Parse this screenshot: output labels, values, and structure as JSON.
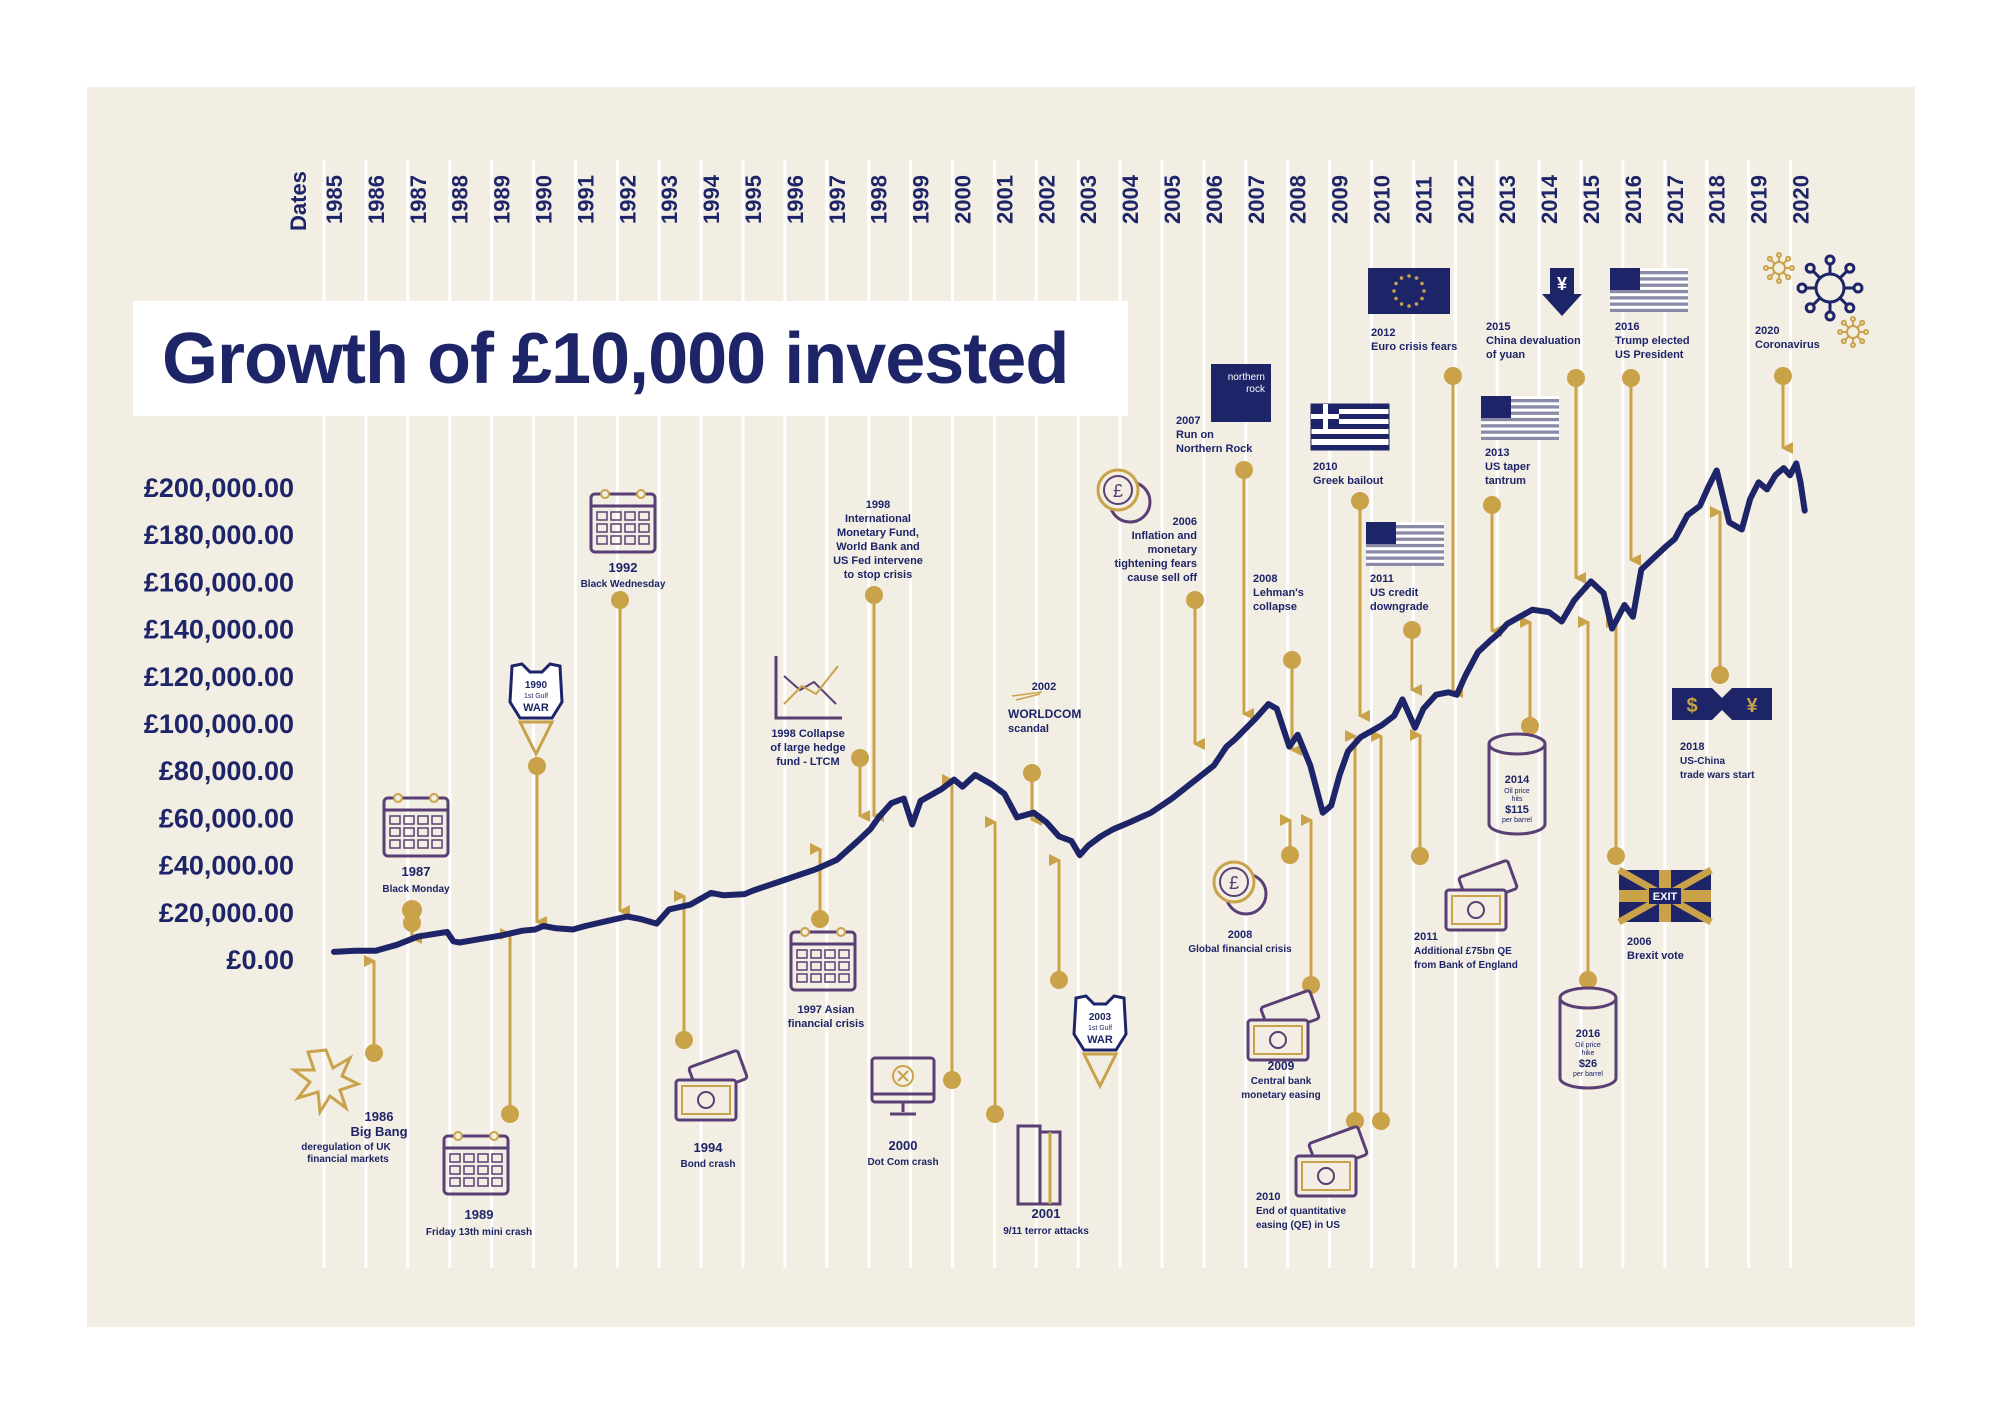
{
  "title": "Growth of £10,000 invested",
  "colors": {
    "background": "#f3eee3",
    "navy": "#1d2468",
    "gold": "#c9a24a",
    "white": "#ffffff"
  },
  "chart_data": {
    "type": "line",
    "title": "Growth of £10,000 invested",
    "xlabel": "Dates",
    "ylabel": "",
    "x_ticks": [
      1985,
      1986,
      1987,
      1988,
      1989,
      1990,
      1991,
      1992,
      1993,
      1994,
      1995,
      1996,
      1997,
      1998,
      1999,
      2000,
      2001,
      2002,
      2003,
      2004,
      2005,
      2006,
      2007,
      2008,
      2009,
      2010,
      2011,
      2012,
      2013,
      2014,
      2015,
      2016,
      2017,
      2018,
      2019,
      2020
    ],
    "y_ticks": [
      "£0.00",
      "£20,000.00",
      "£40,000.00",
      "£60,000.00",
      "£80,000.00",
      "£100,000.00",
      "£120,000.00",
      "£140,000.00",
      "£160,000.00",
      "£180,000.00",
      "£200,000.00"
    ],
    "ylim": [
      0,
      200000
    ],
    "xlim": [
      1985,
      2020
    ],
    "grid": "vertical lines at each year",
    "series": [
      {
        "x": [
          1985.0,
          1985.5,
          1986.0,
          1986.5,
          1987.0,
          1987.7,
          1987.85,
          1988.0,
          1988.5,
          1989.0,
          1989.5,
          1989.8,
          1990.0,
          1990.3,
          1990.7,
          1991.0,
          1991.5,
          1992.0,
          1992.3,
          1992.7,
          1993.0,
          1993.5,
          1994.0,
          1994.3,
          1994.8,
          1995.0,
          1995.5,
          1996.0,
          1996.5,
          1997.0,
          1997.5,
          1997.8,
          1998.0,
          1998.3,
          1998.6,
          1998.8,
          1999.0,
          1999.5,
          1999.8,
          2000.0,
          2000.3,
          2000.7,
          2001.0,
          2001.3,
          2001.7,
          2002.0,
          2002.3,
          2002.6,
          2002.8,
          2003.0,
          2003.3,
          2003.6,
          2004.0,
          2004.5,
          2005.0,
          2005.5,
          2006.0,
          2006.3,
          2006.5,
          2007.0,
          2007.3,
          2007.5,
          2007.8,
          2008.0,
          2008.3,
          2008.6,
          2008.8,
          2009.0,
          2009.2,
          2009.5,
          2009.8,
          2010.0,
          2010.3,
          2010.5,
          2010.8,
          2011.0,
          2011.3,
          2011.6,
          2011.8,
          2012.0,
          2012.3,
          2012.6,
          2012.8,
          2013.0,
          2013.3,
          2013.6,
          2014.0,
          2014.3,
          2014.6,
          2014.8,
          2015.0,
          2015.3,
          2015.5,
          2015.8,
          2016.0,
          2016.2,
          2016.5,
          2016.8,
          2017.0,
          2017.3,
          2017.6,
          2017.8,
          2018.0,
          2018.3,
          2018.6,
          2018.8,
          2019.0,
          2019.2,
          2019.4,
          2019.6,
          2019.75,
          2019.9,
          2020.0,
          2020.1
        ],
        "y": [
          3000,
          3500,
          3500,
          6000,
          9500,
          11500,
          7500,
          7000,
          8500,
          10000,
          12000,
          12500,
          14000,
          13000,
          12500,
          14000,
          16000,
          18000,
          17000,
          15000,
          21000,
          23000,
          28000,
          27000,
          27500,
          29000,
          32000,
          35000,
          38000,
          42000,
          50000,
          55000,
          60000,
          66000,
          68000,
          57000,
          67000,
          72000,
          76000,
          73000,
          78000,
          74000,
          70000,
          60000,
          62000,
          58000,
          52000,
          50000,
          44000,
          48000,
          52000,
          55000,
          58000,
          62000,
          68000,
          75000,
          82000,
          90000,
          93000,
          102000,
          108000,
          106000,
          90000,
          95000,
          82000,
          62000,
          65000,
          78000,
          88000,
          94000,
          97000,
          99000,
          103000,
          110000,
          98000,
          106000,
          112000,
          113000,
          112000,
          120000,
          130000,
          135000,
          138000,
          142000,
          145000,
          148000,
          147000,
          143000,
          152000,
          156000,
          160000,
          155000,
          140000,
          150000,
          145000,
          165000,
          170000,
          175000,
          178000,
          188000,
          192000,
          200000,
          207000,
          185000,
          182000,
          195000,
          202000,
          199000,
          205000,
          208000,
          205000,
          210000,
          202000,
          190000
        ]
      }
    ],
    "annotations": [
      {
        "year": "1986",
        "text": "Big Bang",
        "sub": "deregulation of UK financial markets",
        "icon": "explosion-icon"
      },
      {
        "year": "1987",
        "text": "Black Monday",
        "icon": "calendar-icon"
      },
      {
        "year": "1989",
        "text": "Friday 13th mini crash",
        "icon": "calendar-icon"
      },
      {
        "year": "1990",
        "text": "1st Gulf WAR",
        "icon": "rocket-icon"
      },
      {
        "year": "1992",
        "text": "Black Wednesday",
        "icon": "calendar-icon"
      },
      {
        "year": "1994",
        "text": "Bond crash",
        "icon": "banknotes-icon"
      },
      {
        "year": "1997",
        "text": "Asian financial crisis",
        "icon": "calendar-icon"
      },
      {
        "year": "1998",
        "text": "Collapse of large hedge fund - LTCM",
        "icon": "chart-crash-icon"
      },
      {
        "year": "1998",
        "text": "International Monetary Fund, World Bank and US Fed intervene to stop crisis"
      },
      {
        "year": "2000",
        "text": "Dot Com crash",
        "icon": "computer-icon"
      },
      {
        "year": "2001",
        "text": "9/11 terror attacks",
        "icon": "towers-icon"
      },
      {
        "year": "2002",
        "text": "WORLDCOM scandal",
        "icon": "worldcom-logo-icon"
      },
      {
        "year": "2003",
        "text": "1st Gulf WAR",
        "icon": "rocket-icon"
      },
      {
        "year": "2006",
        "text": "Inflation and monetary tightening fears cause sell off",
        "icon": "coins-icon"
      },
      {
        "year": "2007",
        "text": "Run on Northern Rock",
        "icon": "northern-rock-logo-icon"
      },
      {
        "year": "2008",
        "text": "Lehman's collapse"
      },
      {
        "year": "2008",
        "text": "Global financial crisis",
        "icon": "coins-icon"
      },
      {
        "year": "2009",
        "text": "Central bank monetary easing",
        "icon": "banknotes-icon"
      },
      {
        "year": "2010",
        "text": "Greek bailout",
        "icon": "greek-flag-icon"
      },
      {
        "year": "2010",
        "text": "End of quantitative easing (QE) in US",
        "icon": "banknotes-icon"
      },
      {
        "year": "2011",
        "text": "US credit downgrade",
        "icon": "us-flag-icon"
      },
      {
        "year": "2011",
        "text": "Additional £75bn QE from Bank of England",
        "icon": "banknotes-icon"
      },
      {
        "year": "2012",
        "text": "Euro crisis fears",
        "icon": "eu-flag-icon"
      },
      {
        "year": "2013",
        "text": "US taper tantrum",
        "icon": "us-flag-icon"
      },
      {
        "year": "2014",
        "text": "Oil price hits $115 per barrel",
        "icon": "oil-barrel-icon"
      },
      {
        "year": "2015",
        "text": "China devaluation of yuan",
        "icon": "yuan-down-icon"
      },
      {
        "year": "2016",
        "text": "Oil price hike $26 per barrel",
        "icon": "oil-barrel-icon"
      },
      {
        "year": "2016",
        "text": "Trump elected US President",
        "icon": "us-flag-icon"
      },
      {
        "year": "2006",
        "text": "Brexit vote",
        "icon": "union-jack-exit-icon"
      },
      {
        "year": "2018",
        "text": "US-China trade wars start",
        "icon": "dollar-yuan-icon"
      },
      {
        "year": "2020",
        "text": "Coronavirus",
        "icon": "virus-icon"
      }
    ]
  },
  "labels": {
    "dates": "Dates",
    "a1986_year": "1986",
    "a1986_t1": "Big Bang",
    "a1986_t2": "deregulation of UK",
    "a1986_t3": "financial markets",
    "a1987_year": "1987",
    "a1987_t1": "Black Monday",
    "a1989_year": "1989",
    "a1989_t1": "Friday 13th mini crash",
    "gulf_1990_year": "1990",
    "gulf_1990_t1": "1st Gulf",
    "gulf_1990_t2": "WAR",
    "a1992_year": "1992",
    "a1992_t1": "Black Wednesday",
    "a1994_year": "1994",
    "a1994_t1": "Bond crash",
    "a1997_t1": "1997 Asian",
    "a1997_t2": "financial crisis",
    "ltcm_t1": "1998 Collapse",
    "ltcm_t2": "of large hedge",
    "ltcm_t3": "fund - LTCM",
    "imf_year": "1998",
    "imf_t1": "International",
    "imf_t2": "Monetary Fund,",
    "imf_t3": "World Bank and",
    "imf_t4": "US Fed intervene",
    "imf_t5": "to stop crisis",
    "a2000_year": "2000",
    "a2000_t1": "Dot Com crash",
    "a2001_year": "2001",
    "a2001_t1": "9/11 terror attacks",
    "a2002_year": "2002",
    "a2002_t1": "WORLDCOM",
    "a2002_t2": "scandal",
    "gulf_2003_year": "2003",
    "gulf_2003_t1": "1st Gulf",
    "gulf_2003_t2": "WAR",
    "a2006_year": "2006",
    "a2006_t1": "Inflation and",
    "a2006_t2": "monetary",
    "a2006_t3": "tightening fears",
    "a2006_t4": "cause sell off",
    "a2007_year": "2007",
    "a2007_t1": "Run on",
    "a2007_t2": "Northern Rock",
    "nr_l1": "northern",
    "nr_l2": "rock",
    "lehman_year": "2008",
    "lehman_t1": "Lehman's",
    "lehman_t2": "collapse",
    "gfc_year": "2008",
    "gfc_t1": "Global financial crisis",
    "a2009_year": "2009",
    "a2009_t1": "Central bank",
    "a2009_t2": "monetary easing",
    "greek_year": "2010",
    "greek_t1": "Greek bailout",
    "qe_end_year": "2010",
    "qe_end_t1": "End of quantitative",
    "qe_end_t2": "easing (QE) in US",
    "downgrade_year": "2011",
    "downgrade_t1": "US credit",
    "downgrade_t2": "downgrade",
    "boe_year": "2011",
    "boe_t1": "Additional £75bn QE",
    "boe_t2": "from Bank of England",
    "euro_year": "2012",
    "euro_t1": "Euro crisis fears",
    "taper_year": "2013",
    "taper_t1": "US taper",
    "taper_t2": "tantrum",
    "oil2014_year": "2014",
    "oil2014_t1": "Oil price",
    "oil2014_t2": "hits",
    "oil2014_t3": "$115",
    "oil2014_t4": "per barrel",
    "yuan_year": "2015",
    "yuan_t1": "China devaluation",
    "yuan_t2": "of yuan",
    "oil2016_year": "2016",
    "oil2016_t1": "Oil price",
    "oil2016_t2": "hike",
    "oil2016_t3": "$26",
    "oil2016_t4": "per barrel",
    "trump_year": "2016",
    "trump_t1": "Trump elected",
    "trump_t2": "US President",
    "brexit_year": "2006",
    "brexit_t1": "Brexit vote",
    "exit_text": "EXIT",
    "trade_year": "2018",
    "trade_t1": "US-China",
    "trade_t2": "trade wars start",
    "corona_year": "2020",
    "corona_t1": "Coronavirus",
    "yen": "¥",
    "dollar": "$",
    "pound": "£"
  }
}
